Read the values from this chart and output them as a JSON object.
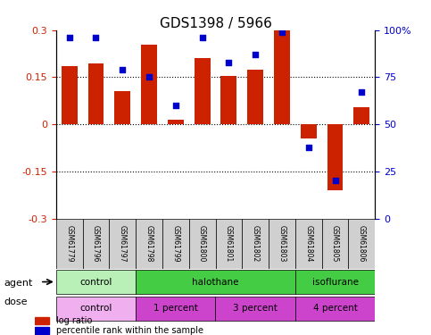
{
  "title": "GDS1398 / 5966",
  "samples": [
    "GSM61779",
    "GSM61796",
    "GSM61797",
    "GSM61798",
    "GSM61799",
    "GSM61800",
    "GSM61801",
    "GSM61802",
    "GSM61803",
    "GSM61804",
    "GSM61805",
    "GSM61806"
  ],
  "log_ratio": [
    0.185,
    0.195,
    0.105,
    0.255,
    0.015,
    0.21,
    0.155,
    0.175,
    0.305,
    -0.045,
    -0.21,
    0.055
  ],
  "percentile": [
    96,
    96,
    79,
    75,
    60,
    96,
    83,
    87,
    99,
    38,
    20,
    67
  ],
  "agent_groups": [
    {
      "label": "control",
      "start": 0,
      "end": 3,
      "color": "#90ee90"
    },
    {
      "label": "halothane",
      "start": 3,
      "end": 9,
      "color": "#44cc44"
    },
    {
      "label": "isoflurane",
      "start": 9,
      "end": 12,
      "color": "#44cc44"
    }
  ],
  "dose_groups": [
    {
      "label": "control",
      "start": 0,
      "end": 3,
      "color": "#ee88ee"
    },
    {
      "label": "1 percent",
      "start": 3,
      "end": 6,
      "color": "#cc44cc"
    },
    {
      "label": "3 percent",
      "start": 6,
      "end": 9,
      "color": "#cc44cc"
    },
    {
      "label": "4 percent",
      "start": 9,
      "end": 12,
      "color": "#cc44cc"
    }
  ],
  "bar_color": "#cc2200",
  "dot_color": "#0000cc",
  "ylim": [
    -0.3,
    0.3
  ],
  "yticks_left": [
    -0.3,
    -0.15,
    0.0,
    0.15,
    0.3
  ],
  "yticks_right": [
    0,
    25,
    50,
    75,
    100
  ],
  "hlines": [
    -0.15,
    0.0,
    0.15
  ],
  "bar_width": 0.6,
  "legend_items": [
    {
      "label": "log ratio",
      "color": "#cc2200"
    },
    {
      "label": "percentile rank within the sample",
      "color": "#0000cc"
    }
  ]
}
